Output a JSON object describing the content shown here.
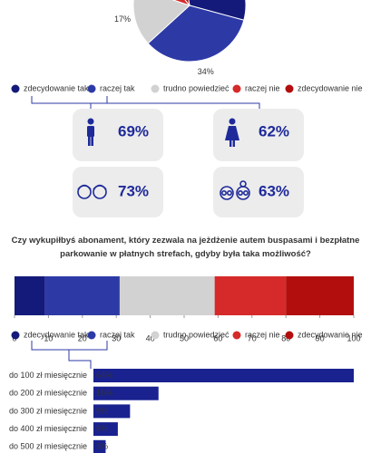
{
  "chart_data": [
    {
      "type": "pie",
      "categories": [
        "zdecydowanie tak",
        "raczej tak",
        "trudno powiedzieć",
        "raczej nie",
        "zdecydowanie nie"
      ],
      "values": [
        32,
        34,
        17,
        9,
        8
      ],
      "value_labels": [
        null,
        "34%",
        "17%",
        null,
        null
      ],
      "colors": [
        "#141a7a",
        "#2d3aa6",
        "#d2d2d2",
        "#d62a2a",
        "#b30e0e"
      ]
    },
    {
      "type": "stacked-bar",
      "title": "Czy wykupiłbyś abonament, który zezwala na jeżdżenie autem buspasami i bezpłatne parkowanie w płatnych strefach, gdyby była taka możliwość?",
      "series": [
        {
          "name": "zdecydowanie tak",
          "color": "#141a7a",
          "values": [
            9
          ]
        },
        {
          "name": "raczej tak",
          "color": "#2d3aa6",
          "values": [
            22
          ]
        },
        {
          "name": "trudno powiedzieć",
          "color": "#d2d2d2",
          "values": [
            28
          ]
        },
        {
          "name": "raczej nie",
          "color": "#d62a2a",
          "values": [
            21
          ]
        },
        {
          "name": "zdecydowanie nie",
          "color": "#b30e0e",
          "values": [
            20
          ]
        }
      ],
      "xlim": [
        0,
        100
      ],
      "xticks": [
        0,
        10,
        20,
        30,
        40,
        50,
        60,
        70,
        80,
        90,
        100
      ]
    },
    {
      "type": "hbar",
      "categories": [
        "do 100 zł miesięcznie",
        "do 200 zł miesięcznie",
        "do 300 zł miesięcznie",
        "do 400 zł miesięcznie",
        "do 500 zł miesięcznie"
      ],
      "values": [
        64,
        16,
        9,
        6,
        3
      ],
      "value_labels": [
        "64%",
        "16%",
        "9%",
        "6%",
        "3%"
      ],
      "color": "#1a2290",
      "xlim": [
        0,
        64
      ]
    }
  ],
  "cards": [
    "69%",
    "62%",
    "73%",
    "63%"
  ]
}
